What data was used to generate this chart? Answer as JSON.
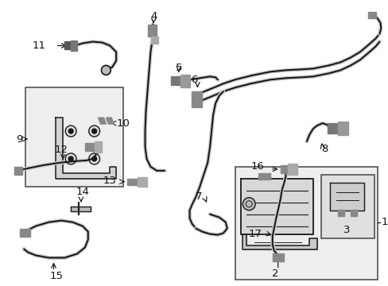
{
  "bg_color": "#ffffff",
  "fig_width": 4.89,
  "fig_height": 3.6,
  "dpi": 100,
  "line_color": "#1a1a1a",
  "text_color": "#111111",
  "font_size": 9.5,
  "box_fill": "#ebebeb",
  "box_edge": "#333333"
}
